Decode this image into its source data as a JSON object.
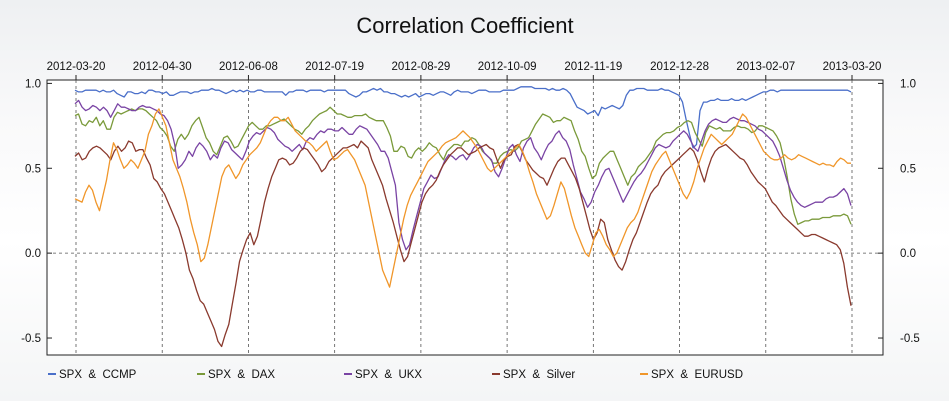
{
  "chart_data": {
    "type": "line",
    "title": "Correlation Coefficient",
    "x_tick_labels": [
      "2012-03-20",
      "2012-04-30",
      "2012-06-08",
      "2012-07-19",
      "2012-08-29",
      "2012-10-09",
      "2012-11-19",
      "2012-12-28",
      "2013-02-07",
      "2013-03-20"
    ],
    "y_ticks": [
      1.0,
      0.5,
      0.0,
      -0.5
    ],
    "y_tick_labels": [
      "1.0",
      "0.5",
      "0.0",
      "-0.5"
    ],
    "ylim": [
      -0.6,
      1.02
    ],
    "grid": "dashed vertical at x ticks, dashed horizontal at 0.0",
    "legend_position": "bottom",
    "series": [
      {
        "name": "SPX  &  CCMP",
        "color": "#4a6fc9",
        "values": [
          0.96,
          0.95,
          0.95,
          0.96,
          0.96,
          0.96,
          0.96,
          0.95,
          0.96,
          0.95,
          0.95,
          0.96,
          0.94,
          0.93,
          0.92,
          0.95,
          0.95,
          0.94,
          0.94,
          0.95,
          0.94,
          0.96,
          0.96,
          0.95,
          0.95,
          0.94,
          0.95,
          0.93,
          0.93,
          0.94,
          0.95,
          0.95,
          0.95,
          0.94,
          0.95,
          0.95,
          0.96,
          0.96,
          0.96,
          0.97,
          0.96,
          0.96,
          0.95,
          0.94,
          0.95,
          0.96,
          0.95,
          0.96,
          0.95,
          0.96,
          0.95,
          0.95,
          0.96,
          0.96,
          0.95,
          0.95,
          0.95,
          0.95,
          0.95,
          0.95,
          0.93,
          0.95,
          0.95,
          0.96,
          0.96,
          0.96,
          0.95,
          0.96,
          0.96,
          0.96,
          0.96,
          0.95,
          0.96,
          0.96,
          0.96,
          0.96,
          0.96,
          0.96,
          0.94,
          0.93,
          0.92,
          0.93,
          0.95,
          0.95,
          0.96,
          0.97,
          0.96,
          0.97,
          0.95,
          0.95,
          0.94,
          0.94,
          0.93,
          0.92,
          0.93,
          0.92,
          0.93,
          0.94,
          0.92,
          0.93,
          0.94,
          0.94,
          0.93,
          0.94,
          0.95,
          0.95,
          0.94,
          0.93,
          0.95,
          0.96,
          0.95,
          0.95,
          0.95,
          0.94,
          0.95,
          0.96,
          0.96,
          0.96,
          0.95,
          0.95,
          0.95,
          0.95,
          0.96,
          0.96,
          0.96,
          0.96,
          0.97,
          0.98,
          0.98,
          0.98,
          0.98,
          0.97,
          0.97,
          0.97,
          0.97,
          0.96,
          0.97,
          0.96,
          0.96,
          0.97,
          0.96,
          0.94,
          0.9,
          0.86,
          0.85,
          0.84,
          0.82,
          0.83,
          0.84,
          0.81,
          0.86,
          0.85,
          0.86,
          0.87,
          0.86,
          0.85,
          0.87,
          0.93,
          0.96,
          0.96,
          0.97,
          0.97,
          0.97,
          0.96,
          0.96,
          0.96,
          0.96,
          0.97,
          0.96,
          0.96,
          0.95,
          0.94,
          0.93,
          0.89,
          0.79,
          0.7,
          0.62,
          0.64,
          0.84,
          0.89,
          0.89,
          0.9,
          0.9,
          0.91,
          0.9,
          0.9,
          0.9,
          0.91,
          0.9,
          0.9,
          0.91,
          0.9,
          0.91,
          0.92,
          0.93,
          0.94,
          0.95,
          0.95,
          0.96,
          0.96,
          0.95,
          0.96,
          0.96,
          0.96,
          0.96,
          0.96,
          0.96,
          0.96,
          0.96,
          0.96,
          0.96,
          0.96,
          0.96,
          0.96,
          0.96,
          0.96,
          0.96,
          0.96,
          0.96,
          0.96,
          0.96,
          0.95
        ]
      },
      {
        "name": "SPX  &  DAX",
        "color": "#7a9a3a",
        "values": [
          0.81,
          0.82,
          0.76,
          0.75,
          0.78,
          0.77,
          0.8,
          0.75,
          0.78,
          0.73,
          0.73,
          0.8,
          0.83,
          0.82,
          0.83,
          0.84,
          0.85,
          0.84,
          0.85,
          0.85,
          0.84,
          0.82,
          0.8,
          0.78,
          0.74,
          0.72,
          0.69,
          0.63,
          0.6,
          0.67,
          0.7,
          0.67,
          0.7,
          0.75,
          0.78,
          0.8,
          0.74,
          0.68,
          0.65,
          0.6,
          0.58,
          0.63,
          0.68,
          0.69,
          0.66,
          0.62,
          0.63,
          0.67,
          0.71,
          0.75,
          0.77,
          0.75,
          0.73,
          0.73,
          0.75,
          0.75,
          0.76,
          0.77,
          0.78,
          0.79,
          0.77,
          0.75,
          0.73,
          0.72,
          0.7,
          0.73,
          0.75,
          0.78,
          0.8,
          0.82,
          0.83,
          0.84,
          0.86,
          0.84,
          0.82,
          0.82,
          0.81,
          0.8,
          0.8,
          0.81,
          0.81,
          0.81,
          0.82,
          0.8,
          0.79,
          0.78,
          0.78,
          0.78,
          0.74,
          0.69,
          0.6,
          0.6,
          0.63,
          0.62,
          0.57,
          0.56,
          0.6,
          0.62,
          0.6,
          0.62,
          0.65,
          0.63,
          0.62,
          0.58,
          0.55,
          0.6,
          0.62,
          0.64,
          0.64,
          0.63,
          0.66,
          0.66,
          0.68,
          0.67,
          0.64,
          0.6,
          0.58,
          0.56,
          0.53,
          0.53,
          0.57,
          0.59,
          0.6,
          0.61,
          0.6,
          0.62,
          0.66,
          0.67,
          0.68,
          0.72,
          0.76,
          0.79,
          0.82,
          0.81,
          0.8,
          0.77,
          0.78,
          0.78,
          0.8,
          0.79,
          0.78,
          0.72,
          0.67,
          0.6,
          0.57,
          0.5,
          0.44,
          0.46,
          0.53,
          0.56,
          0.58,
          0.6,
          0.6,
          0.55,
          0.5,
          0.45,
          0.4,
          0.45,
          0.47,
          0.51,
          0.53,
          0.55,
          0.58,
          0.61,
          0.66,
          0.68,
          0.7,
          0.71,
          0.71,
          0.72,
          0.74,
          0.75,
          0.77,
          0.78,
          0.77,
          0.71,
          0.67,
          0.63,
          0.71,
          0.75,
          0.74,
          0.73,
          0.74,
          0.72,
          0.72,
          0.72,
          0.74,
          0.75,
          0.74,
          0.74,
          0.73,
          0.71,
          0.72,
          0.75,
          0.75,
          0.74,
          0.73,
          0.72,
          0.69,
          0.65,
          0.56,
          0.45,
          0.32,
          0.23,
          0.17,
          0.18,
          0.19,
          0.19,
          0.2,
          0.2,
          0.2,
          0.21,
          0.21,
          0.21,
          0.22,
          0.22,
          0.22,
          0.23,
          0.22,
          0.17
        ]
      },
      {
        "name": "SPX  &  UKX",
        "color": "#7a44a4",
        "values": [
          0.88,
          0.9,
          0.86,
          0.84,
          0.85,
          0.87,
          0.86,
          0.84,
          0.86,
          0.84,
          0.8,
          0.84,
          0.88,
          0.86,
          0.86,
          0.85,
          0.84,
          0.84,
          0.86,
          0.87,
          0.86,
          0.86,
          0.85,
          0.84,
          0.82,
          0.81,
          0.78,
          0.73,
          0.64,
          0.5,
          0.52,
          0.55,
          0.6,
          0.57,
          0.62,
          0.65,
          0.63,
          0.6,
          0.55,
          0.58,
          0.56,
          0.62,
          0.66,
          0.65,
          0.61,
          0.59,
          0.57,
          0.55,
          0.6,
          0.66,
          0.69,
          0.71,
          0.7,
          0.72,
          0.74,
          0.73,
          0.71,
          0.67,
          0.65,
          0.63,
          0.62,
          0.6,
          0.62,
          0.64,
          0.61,
          0.66,
          0.68,
          0.67,
          0.7,
          0.72,
          0.71,
          0.73,
          0.73,
          0.72,
          0.72,
          0.74,
          0.72,
          0.7,
          0.7,
          0.73,
          0.75,
          0.74,
          0.73,
          0.7,
          0.67,
          0.64,
          0.6,
          0.6,
          0.56,
          0.48,
          0.4,
          0.18,
          0.08,
          0.02,
          0.05,
          0.14,
          0.22,
          0.3,
          0.38,
          0.42,
          0.46,
          0.44,
          0.45,
          0.5,
          0.55,
          0.58,
          0.57,
          0.55,
          0.57,
          0.58,
          0.55,
          0.58,
          0.62,
          0.64,
          0.63,
          0.59,
          0.57,
          0.55,
          0.48,
          0.45,
          0.5,
          0.56,
          0.62,
          0.64,
          0.58,
          0.54,
          0.62,
          0.66,
          0.68,
          0.62,
          0.59,
          0.55,
          0.6,
          0.64,
          0.66,
          0.7,
          0.72,
          0.68,
          0.66,
          0.61,
          0.52,
          0.44,
          0.36,
          0.32,
          0.27,
          0.3,
          0.36,
          0.4,
          0.45,
          0.49,
          0.5,
          0.45,
          0.4,
          0.35,
          0.3,
          0.34,
          0.38,
          0.42,
          0.45,
          0.47,
          0.5,
          0.54,
          0.58,
          0.62,
          0.64,
          0.63,
          0.62,
          0.63,
          0.66,
          0.68,
          0.7,
          0.72,
          0.7,
          0.66,
          0.62,
          0.6,
          0.66,
          0.72,
          0.76,
          0.78,
          0.79,
          0.78,
          0.77,
          0.77,
          0.79,
          0.8,
          0.79,
          0.78,
          0.78,
          0.77,
          0.76,
          0.75,
          0.73,
          0.72,
          0.7,
          0.68,
          0.66,
          0.62,
          0.57,
          0.5,
          0.43,
          0.37,
          0.33,
          0.3,
          0.28,
          0.27,
          0.28,
          0.29,
          0.3,
          0.3,
          0.3,
          0.32,
          0.33,
          0.33,
          0.34,
          0.36,
          0.38,
          0.35,
          0.28
        ]
      },
      {
        "name": "SPX  &  Silver",
        "color": "#8a3a2e",
        "values": [
          0.57,
          0.59,
          0.55,
          0.56,
          0.6,
          0.62,
          0.63,
          0.62,
          0.6,
          0.58,
          0.55,
          0.6,
          0.63,
          0.6,
          0.62,
          0.66,
          0.65,
          0.6,
          0.61,
          0.61,
          0.56,
          0.52,
          0.44,
          0.42,
          0.38,
          0.35,
          0.3,
          0.25,
          0.2,
          0.15,
          0.08,
          0.0,
          -0.1,
          -0.15,
          -0.22,
          -0.28,
          -0.3,
          -0.35,
          -0.4,
          -0.45,
          -0.52,
          -0.55,
          -0.48,
          -0.42,
          -0.3,
          -0.18,
          -0.05,
          0.02,
          0.08,
          0.12,
          0.05,
          0.1,
          0.2,
          0.3,
          0.38,
          0.45,
          0.5,
          0.55,
          0.56,
          0.55,
          0.52,
          0.53,
          0.56,
          0.6,
          0.62,
          0.61,
          0.58,
          0.55,
          0.52,
          0.48,
          0.5,
          0.54,
          0.56,
          0.58,
          0.6,
          0.62,
          0.62,
          0.63,
          0.64,
          0.62,
          0.66,
          0.64,
          0.62,
          0.55,
          0.5,
          0.45,
          0.4,
          0.32,
          0.25,
          0.18,
          0.1,
          0.02,
          -0.05,
          -0.02,
          0.06,
          0.14,
          0.22,
          0.3,
          0.35,
          0.38,
          0.4,
          0.43,
          0.48,
          0.52,
          0.55,
          0.58,
          0.6,
          0.62,
          0.62,
          0.6,
          0.58,
          0.59,
          0.6,
          0.62,
          0.63,
          0.64,
          0.62,
          0.61,
          0.55,
          0.5,
          0.55,
          0.57,
          0.58,
          0.63,
          0.64,
          0.6,
          0.55,
          0.52,
          0.49,
          0.47,
          0.45,
          0.44,
          0.4,
          0.45,
          0.5,
          0.54,
          0.56,
          0.56,
          0.52,
          0.48,
          0.44,
          0.38,
          0.3,
          0.22,
          0.14,
          0.08,
          0.12,
          0.2,
          0.18,
          0.08,
          0.02,
          -0.04,
          -0.08,
          -0.1,
          -0.05,
          0.02,
          0.08,
          0.12,
          0.18,
          0.24,
          0.3,
          0.35,
          0.38,
          0.4,
          0.45,
          0.48,
          0.5,
          0.52,
          0.54,
          0.56,
          0.58,
          0.6,
          0.62,
          0.6,
          0.55,
          0.48,
          0.42,
          0.5,
          0.56,
          0.6,
          0.62,
          0.63,
          0.64,
          0.62,
          0.6,
          0.58,
          0.56,
          0.55,
          0.52,
          0.48,
          0.45,
          0.42,
          0.4,
          0.38,
          0.34,
          0.3,
          0.28,
          0.25,
          0.22,
          0.2,
          0.18,
          0.16,
          0.14,
          0.12,
          0.1,
          0.1,
          0.11,
          0.11,
          0.1,
          0.09,
          0.08,
          0.07,
          0.06,
          0.05,
          0.02,
          -0.06,
          -0.2,
          -0.31
        ]
      },
      {
        "name": "SPX  &  EURUSD",
        "color": "#f0962a",
        "values": [
          0.32,
          0.31,
          0.3,
          0.36,
          0.4,
          0.37,
          0.3,
          0.25,
          0.34,
          0.43,
          0.55,
          0.65,
          0.61,
          0.55,
          0.5,
          0.52,
          0.55,
          0.53,
          0.5,
          0.55,
          0.6,
          0.7,
          0.75,
          0.82,
          0.85,
          0.8,
          0.75,
          0.65,
          0.55,
          0.5,
          0.45,
          0.38,
          0.3,
          0.2,
          0.12,
          0.05,
          -0.05,
          -0.03,
          0.05,
          0.15,
          0.25,
          0.35,
          0.45,
          0.5,
          0.52,
          0.48,
          0.44,
          0.47,
          0.52,
          0.55,
          0.58,
          0.6,
          0.62,
          0.65,
          0.7,
          0.75,
          0.78,
          0.8,
          0.8,
          0.78,
          0.78,
          0.8,
          0.76,
          0.72,
          0.7,
          0.68,
          0.66,
          0.65,
          0.63,
          0.6,
          0.62,
          0.64,
          0.66,
          0.6,
          0.55,
          0.56,
          0.58,
          0.6,
          0.61,
          0.58,
          0.55,
          0.5,
          0.45,
          0.4,
          0.3,
          0.2,
          0.1,
          0.0,
          -0.1,
          -0.15,
          -0.2,
          -0.1,
          0.0,
          0.1,
          0.2,
          0.28,
          0.34,
          0.38,
          0.42,
          0.46,
          0.5,
          0.54,
          0.56,
          0.58,
          0.6,
          0.63,
          0.65,
          0.66,
          0.67,
          0.68,
          0.7,
          0.72,
          0.7,
          0.68,
          0.65,
          0.62,
          0.58,
          0.54,
          0.5,
          0.48,
          0.5,
          0.52,
          0.54,
          0.56,
          0.58,
          0.6,
          0.62,
          0.64,
          0.6,
          0.55,
          0.48,
          0.42,
          0.35,
          0.3,
          0.25,
          0.2,
          0.22,
          0.28,
          0.35,
          0.42,
          0.38,
          0.3,
          0.22,
          0.15,
          0.1,
          0.05,
          0.0,
          -0.02,
          0.05,
          0.12,
          0.14,
          0.1,
          0.05,
          0.02,
          -0.02,
          0.0,
          0.05,
          0.1,
          0.15,
          0.18,
          0.2,
          0.24,
          0.3,
          0.36,
          0.42,
          0.48,
          0.52,
          0.55,
          0.58,
          0.6,
          0.55,
          0.5,
          0.45,
          0.4,
          0.35,
          0.32,
          0.36,
          0.42,
          0.5,
          0.56,
          0.62,
          0.66,
          0.7,
          0.68,
          0.66,
          0.64,
          0.66,
          0.68,
          0.7,
          0.74,
          0.78,
          0.82,
          0.8,
          0.76,
          0.72,
          0.68,
          0.64,
          0.6,
          0.58,
          0.56,
          0.55,
          0.55,
          0.56,
          0.58,
          0.56,
          0.55,
          0.56,
          0.58,
          0.57,
          0.56,
          0.55,
          0.54,
          0.53,
          0.52,
          0.53,
          0.52,
          0.52,
          0.51,
          0.54,
          0.56,
          0.55,
          0.53,
          0.53
        ]
      }
    ]
  }
}
